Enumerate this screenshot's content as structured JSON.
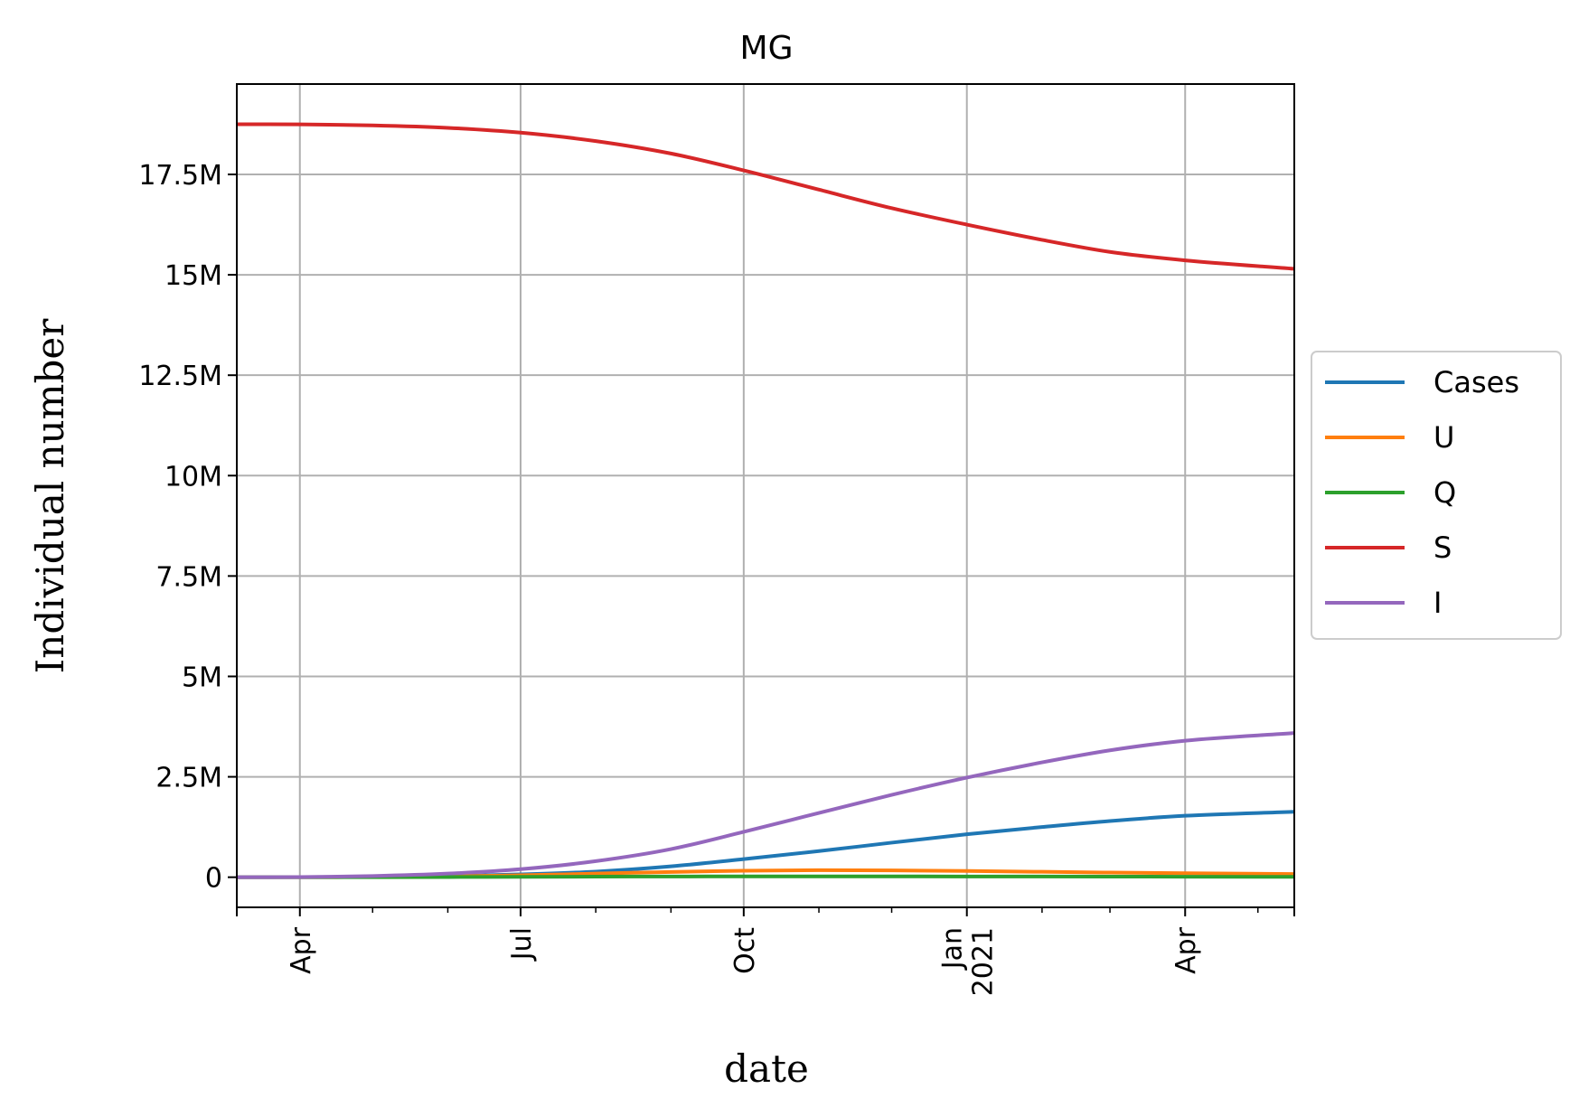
{
  "chart_data": {
    "type": "line",
    "title": "MG",
    "xlabel": "date",
    "ylabel": "Individual number",
    "x_range": [
      "2020-03-06",
      "2021-05-16"
    ],
    "ylim": [
      -750000,
      19750000
    ],
    "grid": true,
    "legend_position": "center right (outside plot)",
    "x_ticks": [
      {
        "date": "2020-04-01",
        "label": "Apr"
      },
      {
        "date": "2020-07-01",
        "label": "Jul"
      },
      {
        "date": "2020-10-01",
        "label": "Oct"
      },
      {
        "date": "2021-01-01",
        "label": "Jan\n2021"
      },
      {
        "date": "2021-04-01",
        "label": "Apr"
      }
    ],
    "x_minor_ticks": [
      "2020-05-01",
      "2020-06-01",
      "2020-08-01",
      "2020-09-01",
      "2020-11-01",
      "2020-12-01",
      "2021-02-01",
      "2021-03-01",
      "2021-05-01"
    ],
    "y_ticks": [
      {
        "value": 0,
        "label": "0"
      },
      {
        "value": 2500000,
        "label": "2.5M"
      },
      {
        "value": 5000000,
        "label": "5M"
      },
      {
        "value": 7500000,
        "label": "7.5M"
      },
      {
        "value": 10000000,
        "label": "10M"
      },
      {
        "value": 12500000,
        "label": "12.5M"
      },
      {
        "value": 15000000,
        "label": "15M"
      },
      {
        "value": 17500000,
        "label": "17.5M"
      }
    ],
    "x": [
      "2020-03-06",
      "2020-04-01",
      "2020-05-01",
      "2020-06-01",
      "2020-07-01",
      "2020-08-01",
      "2020-09-01",
      "2020-10-01",
      "2020-11-01",
      "2020-12-01",
      "2021-01-01",
      "2021-02-01",
      "2021-03-01",
      "2021-04-01",
      "2021-05-16"
    ],
    "series": [
      {
        "name": "Cases",
        "color": "#1f77b4",
        "values": [
          0,
          2000,
          10000,
          30000,
          70000,
          140000,
          270000,
          450000,
          650000,
          860000,
          1070000,
          1250000,
          1400000,
          1530000,
          1630000
        ]
      },
      {
        "name": "U",
        "color": "#ff7f0e",
        "values": [
          0,
          1000,
          5000,
          20000,
          50000,
          90000,
          130000,
          160000,
          175000,
          170000,
          155000,
          135000,
          115000,
          100000,
          80000
        ]
      },
      {
        "name": "Q",
        "color": "#2ca02c",
        "values": [
          0,
          500,
          2000,
          5000,
          10000,
          15000,
          18000,
          20000,
          20000,
          20000,
          19000,
          17000,
          15000,
          13000,
          10000
        ]
      },
      {
        "name": "S",
        "color": "#d62728",
        "values": [
          18750000,
          18745000,
          18720000,
          18660000,
          18540000,
          18330000,
          18020000,
          17600000,
          17120000,
          16660000,
          16250000,
          15870000,
          15570000,
          15360000,
          15150000
        ]
      },
      {
        "name": "I",
        "color": "#9467bd",
        "values": [
          0,
          5000,
          30000,
          90000,
          200000,
          400000,
          700000,
          1130000,
          1600000,
          2050000,
          2480000,
          2860000,
          3160000,
          3400000,
          3590000
        ]
      }
    ]
  }
}
